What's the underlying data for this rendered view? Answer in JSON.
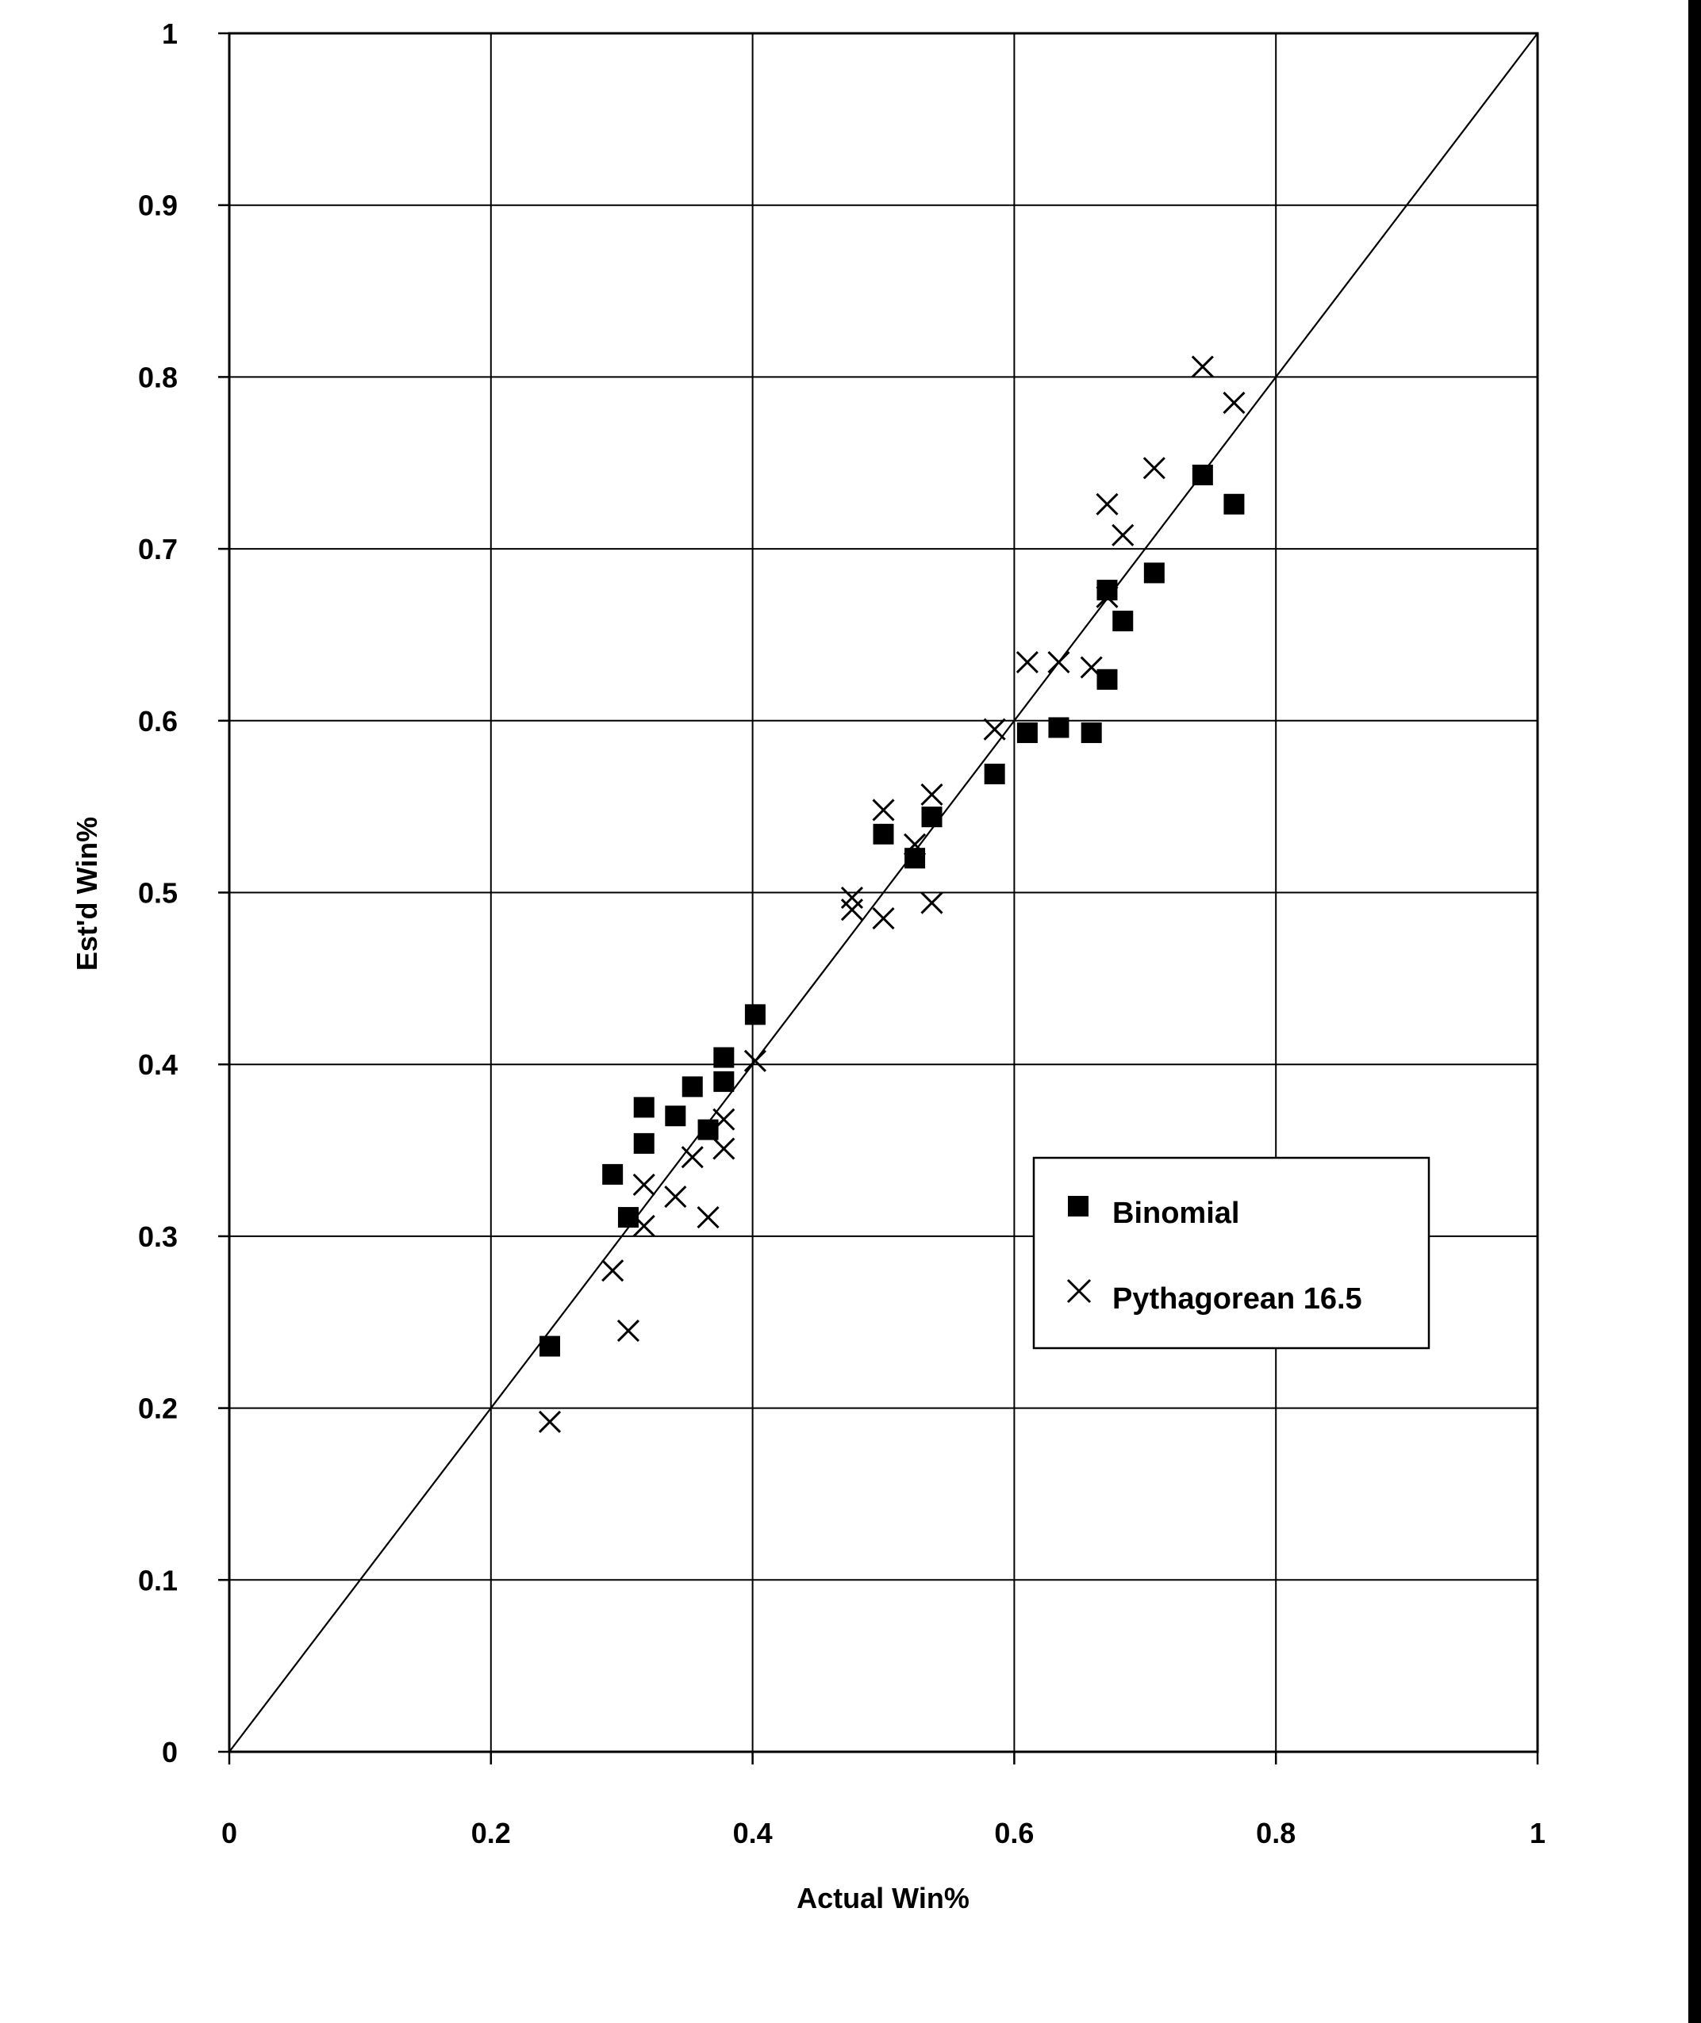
{
  "chart_data": {
    "type": "scatter",
    "title": "",
    "xlabel": "Actual Win%",
    "ylabel": "Est'd Win%",
    "xlim": [
      0,
      1
    ],
    "ylim": [
      0,
      1
    ],
    "x_ticks": [
      0,
      0.2,
      0.4,
      0.6,
      0.8,
      1
    ],
    "x_tick_labels": [
      "0",
      "0.2",
      "0.4",
      "0.6",
      "0.8",
      "1"
    ],
    "y_ticks": [
      0,
      0.1,
      0.2,
      0.3,
      0.4,
      0.5,
      0.6,
      0.7,
      0.8,
      0.9,
      1
    ],
    "y_tick_labels": [
      "0",
      "0.1",
      "0.2",
      "0.3",
      "0.4",
      "0.5",
      "0.6",
      "0.7",
      "0.8",
      "0.9",
      "1"
    ],
    "grid": true,
    "legend_position": "right-middle",
    "reference_line": {
      "x": [
        0,
        1
      ],
      "y": [
        0,
        1
      ]
    },
    "series": [
      {
        "name": "Binomial",
        "marker": "square",
        "color": "#000000",
        "points": [
          [
            0.245,
            0.236
          ],
          [
            0.293,
            0.336
          ],
          [
            0.305,
            0.311
          ],
          [
            0.317,
            0.354
          ],
          [
            0.317,
            0.375
          ],
          [
            0.341,
            0.37
          ],
          [
            0.354,
            0.387
          ],
          [
            0.366,
            0.362
          ],
          [
            0.378,
            0.39
          ],
          [
            0.378,
            0.404
          ],
          [
            0.402,
            0.429
          ],
          [
            0.5,
            0.534
          ],
          [
            0.524,
            0.52
          ],
          [
            0.537,
            0.544
          ],
          [
            0.585,
            0.569
          ],
          [
            0.61,
            0.593
          ],
          [
            0.634,
            0.596
          ],
          [
            0.659,
            0.593
          ],
          [
            0.671,
            0.624
          ],
          [
            0.671,
            0.676
          ],
          [
            0.683,
            0.658
          ],
          [
            0.707,
            0.686
          ],
          [
            0.744,
            0.743
          ],
          [
            0.768,
            0.726
          ]
        ]
      },
      {
        "name": "Pythagorean 16.5",
        "marker": "x",
        "color": "#000000",
        "points": [
          [
            0.245,
            0.192
          ],
          [
            0.293,
            0.28
          ],
          [
            0.305,
            0.245
          ],
          [
            0.317,
            0.306
          ],
          [
            0.317,
            0.33
          ],
          [
            0.341,
            0.323
          ],
          [
            0.354,
            0.346
          ],
          [
            0.366,
            0.311
          ],
          [
            0.378,
            0.351
          ],
          [
            0.378,
            0.368
          ],
          [
            0.402,
            0.402
          ],
          [
            0.476,
            0.497
          ],
          [
            0.476,
            0.49
          ],
          [
            0.5,
            0.485
          ],
          [
            0.5,
            0.548
          ],
          [
            0.524,
            0.528
          ],
          [
            0.537,
            0.494
          ],
          [
            0.537,
            0.557
          ],
          [
            0.585,
            0.595
          ],
          [
            0.61,
            0.634
          ],
          [
            0.634,
            0.634
          ],
          [
            0.659,
            0.631
          ],
          [
            0.671,
            0.672
          ],
          [
            0.671,
            0.726
          ],
          [
            0.683,
            0.708
          ],
          [
            0.707,
            0.747
          ],
          [
            0.744,
            0.806
          ],
          [
            0.768,
            0.785
          ]
        ]
      }
    ]
  }
}
